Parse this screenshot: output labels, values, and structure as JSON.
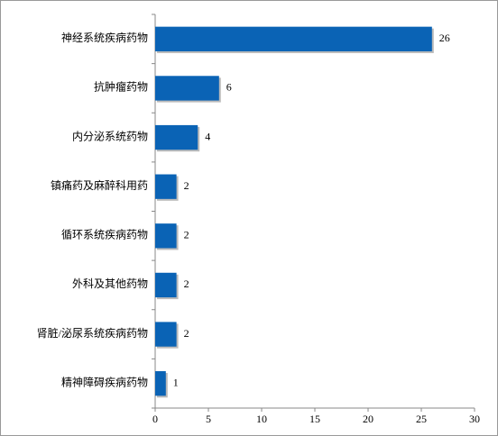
{
  "chart_data": {
    "type": "bar",
    "orientation": "horizontal",
    "categories": [
      "神经系统疾病药物",
      "抗肿瘤药物",
      "内分泌系统药物",
      "镇痛药及麻醉科用药",
      "循环系统疾病药物",
      "外科及其他药物",
      "肾脏/泌尿系统疾病药物",
      "精神障碍疾病药物"
    ],
    "values": [
      26,
      6,
      4,
      2,
      2,
      2,
      2,
      1
    ],
    "color": "#0a63b5",
    "xlim": [
      0,
      30
    ],
    "xticks": [
      0,
      5,
      10,
      15,
      20,
      25,
      30
    ],
    "grid": false
  }
}
